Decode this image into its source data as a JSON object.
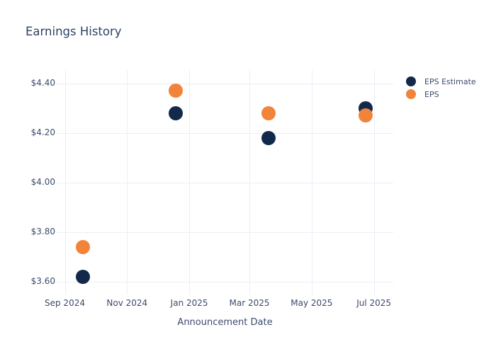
{
  "chart_data": {
    "type": "scatter",
    "title": "Earnings History",
    "xlabel": "Announcement Date",
    "ylabel": "",
    "x": [
      "2024-09-19",
      "2024-12-19",
      "2025-03-20",
      "2025-06-23"
    ],
    "series": [
      {
        "name": "EPS Estimate",
        "color": "#13294b",
        "values": [
          3.62,
          4.28,
          4.18,
          4.3
        ]
      },
      {
        "name": "EPS",
        "color": "#f2833b",
        "values": [
          3.74,
          4.37,
          4.28,
          4.27
        ]
      }
    ],
    "x_ticks": [
      {
        "date": "2024-09-01",
        "label": "Sep 2024"
      },
      {
        "date": "2024-11-01",
        "label": "Nov 2024"
      },
      {
        "date": "2025-01-01",
        "label": "Jan 2025"
      },
      {
        "date": "2025-03-01",
        "label": "Mar 2025"
      },
      {
        "date": "2025-05-01",
        "label": "May 2025"
      },
      {
        "date": "2025-07-01",
        "label": "Jul 2025"
      }
    ],
    "y_ticks": [
      {
        "value": 3.6,
        "label": "$3.60"
      },
      {
        "value": 3.8,
        "label": "$3.80"
      },
      {
        "value": 4.0,
        "label": "$4.00"
      },
      {
        "value": 4.2,
        "label": "$4.20"
      },
      {
        "value": 4.4,
        "label": "$4.40"
      }
    ],
    "x_range": [
      "2024-08-24",
      "2025-07-20"
    ],
    "y_range": [
      3.549,
      4.454
    ],
    "grid": true,
    "legend_position": "right",
    "colors": {
      "background": "#ffffff",
      "grid": "#e9eef7",
      "title_text": "#2e4263",
      "axis_text": "#3b4a6b"
    }
  }
}
